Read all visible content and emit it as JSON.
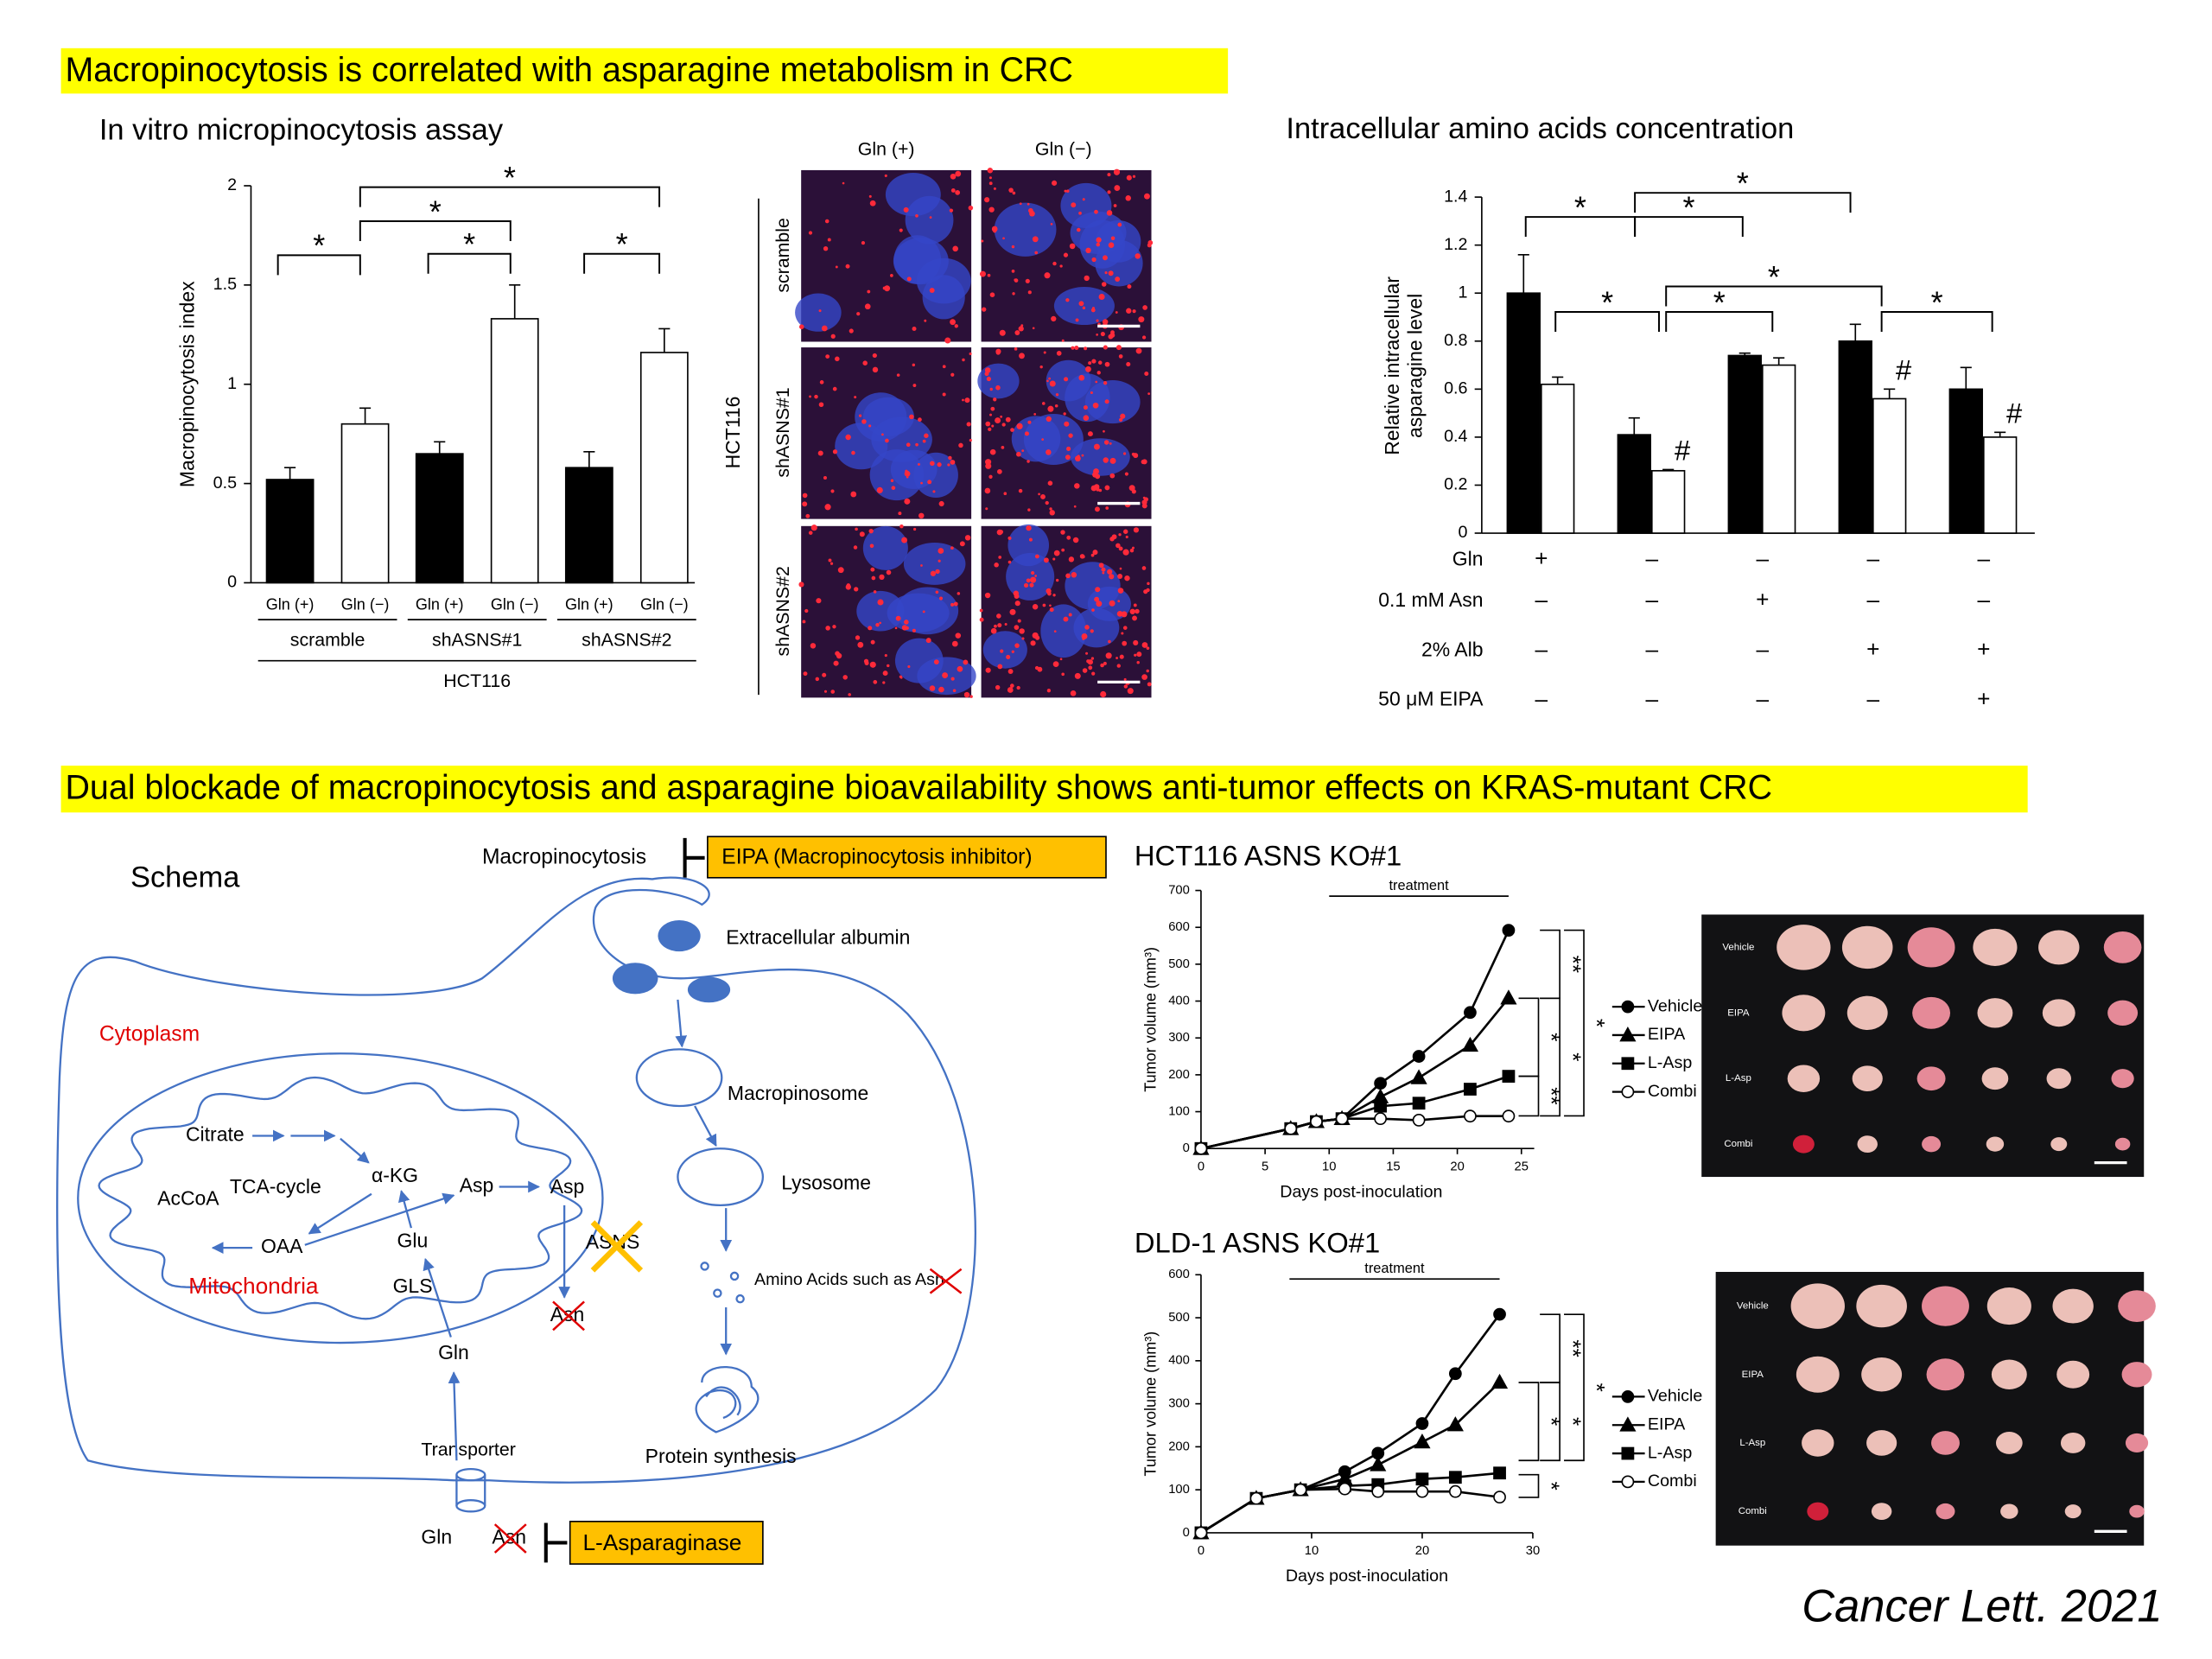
{
  "headings": [
    "Macropinocytosis is correlated with asparagine metabolism in CRC",
    "Dual blockade of macropinocytosis and asparagine bioavailability shows anti-tumor effects on KRAS-mutant CRC"
  ],
  "subheadings": [
    "In vitro micropinocytosis assay",
    "Intracellular amino acids concentration"
  ],
  "micrograph": {
    "columns": [
      "Gln (+)",
      "Gln (−)"
    ],
    "rows": [
      "scramble",
      "shASNS#1",
      "shASNS#2"
    ],
    "cell_line": "HCT116"
  },
  "schema": {
    "title": "Schema",
    "macropinocytosis": "Macropinocytosis",
    "eipa": "EIPA (Macropinocytosis inhibitor)",
    "albumin": "Extracellular albumin",
    "cytoplasm": "Cytoplasm",
    "macropinosome": "Macropinosome",
    "lysosome": "Lysosome",
    "amino_acids": "Amino Acids such as Asn",
    "protein": "Protein synthesis",
    "citrate": "Citrate",
    "akg": "α-KG",
    "tca": "TCA-cycle",
    "accoa": "AcCoA",
    "oaa": "OAA",
    "glu": "Glu",
    "gls": "GLS",
    "mitochondria": "Mitochondria",
    "asp_mito": "Asp",
    "asp": "Asp",
    "asns": "ASNS",
    "asn": "Asn",
    "gln": "Gln",
    "transporter": "Transporter",
    "gln_out": "Gln",
    "asn_out": "Asn",
    "lasparaginase": "L-Asparaginase"
  },
  "citation": "Cancer Lett. 2021",
  "chart_data": [
    {
      "type": "bar",
      "ylabel": "Macropinocytosis index",
      "categories": [
        "scramble",
        "shASNS#1",
        "shASNS#2"
      ],
      "group_label": "HCT116",
      "series": [
        {
          "name": "Gln (+)",
          "color": "#000000",
          "values": [
            0.52,
            0.65,
            0.58
          ],
          "errors": [
            0.06,
            0.06,
            0.08
          ]
        },
        {
          "name": "Gln (−)",
          "color": "#ffffff",
          "values": [
            0.8,
            1.33,
            1.16
          ],
          "errors": [
            0.08,
            0.17,
            0.12
          ]
        }
      ],
      "ylim": [
        0,
        2
      ],
      "yticks": [
        0,
        0.5,
        1,
        1.5,
        2
      ],
      "annotations": [
        "*",
        "*",
        "*",
        "*",
        "*"
      ]
    },
    {
      "type": "bar",
      "ylabel": [
        "Relative intracellular",
        "asparagine level"
      ],
      "series": [
        {
          "color": "#000000",
          "values": [
            1.0,
            0.41,
            0.74,
            0.8,
            0.6
          ],
          "errors": [
            0.16,
            0.07,
            0.01,
            0.07,
            0.09
          ]
        },
        {
          "color": "#ffffff",
          "values": [
            0.62,
            0.26,
            0.7,
            0.56,
            0.4
          ],
          "errors": [
            0.03,
            0.005,
            0.03,
            0.04,
            0.02
          ]
        }
      ],
      "conditions": [
        {
          "name": "Gln",
          "values": [
            "+",
            "–",
            "–",
            "–",
            "–"
          ]
        },
        {
          "name": "0.1 mM Asn",
          "values": [
            "–",
            "–",
            "+",
            "–",
            "–"
          ]
        },
        {
          "name": "2% Alb",
          "values": [
            "–",
            "–",
            "–",
            "+",
            "+"
          ]
        },
        {
          "name": "50 μM EIPA",
          "values": [
            "–",
            "–",
            "–",
            "–",
            "+"
          ]
        }
      ],
      "ylim": [
        0,
        1.4
      ],
      "yticks": [
        0,
        0.2,
        0.4,
        0.6,
        0.8,
        1,
        1.2,
        1.4
      ],
      "annotations": [
        "*",
        "*",
        "*",
        "*",
        "*",
        "*",
        "*"
      ],
      "markers": [
        "#",
        "#",
        "#"
      ]
    },
    {
      "type": "line",
      "title": "HCT116 ASNS KO#1",
      "xlabel": "Days post-inoculation",
      "ylabel": "Tumor volume (mm³)",
      "x": [
        0,
        7,
        9,
        11,
        14,
        17,
        21,
        24
      ],
      "series": [
        {
          "name": "Vehicle",
          "marker": "circle",
          "color": "#000000",
          "values": [
            0,
            54,
            73,
            81,
            177,
            250,
            369,
            592
          ]
        },
        {
          "name": "EIPA",
          "marker": "triangle",
          "color": "#000000",
          "values": [
            0,
            54,
            73,
            81,
            140,
            192,
            280,
            408
          ]
        },
        {
          "name": "L-Asp",
          "marker": "square",
          "color": "#000000",
          "values": [
            0,
            54,
            73,
            81,
            115,
            123,
            161,
            196
          ]
        },
        {
          "name": "Combi",
          "marker": "open-circle",
          "color": "#000000",
          "values": [
            0,
            54,
            73,
            81,
            81,
            77,
            88,
            88
          ]
        }
      ],
      "xlim": [
        0,
        26
      ],
      "xticks": [
        0,
        5,
        10,
        15,
        20,
        25
      ],
      "ylim": [
        0,
        700
      ],
      "yticks": [
        0,
        100,
        200,
        300,
        400,
        500,
        600,
        700
      ],
      "treatment": {
        "label": "treatment",
        "range": [
          10,
          24
        ]
      },
      "annotations": [
        "**",
        "*",
        "*",
        "*",
        "**"
      ]
    },
    {
      "type": "line",
      "title": "DLD-1 ASNS KO#1",
      "xlabel": "Days post-inoculation",
      "ylabel": "Tumor volume (mm³)",
      "x": [
        0,
        5,
        9,
        13,
        16,
        20,
        23,
        27
      ],
      "series": [
        {
          "name": "Vehicle",
          "marker": "circle",
          "color": "#000000",
          "values": [
            0,
            80,
            100,
            142,
            185,
            254,
            370,
            508
          ]
        },
        {
          "name": "EIPA",
          "marker": "triangle",
          "color": "#000000",
          "values": [
            0,
            80,
            100,
            125,
            158,
            211,
            251,
            350
          ]
        },
        {
          "name": "L-Asp",
          "marker": "square",
          "color": "#000000",
          "values": [
            0,
            80,
            100,
            109,
            112,
            125,
            129,
            139
          ]
        },
        {
          "name": "Combi",
          "marker": "open-circle",
          "color": "#000000",
          "values": [
            0,
            80,
            100,
            102,
            96,
            96,
            96,
            83
          ]
        }
      ],
      "xlim": [
        0,
        30
      ],
      "xticks": [
        0,
        10,
        20,
        30
      ],
      "ylim": [
        0,
        600
      ],
      "yticks": [
        0,
        100,
        200,
        300,
        400,
        500,
        600
      ],
      "treatment": {
        "label": "treatment",
        "range": [
          8,
          27
        ]
      },
      "annotations": [
        "**",
        "*",
        "*",
        "*",
        "*"
      ]
    }
  ]
}
